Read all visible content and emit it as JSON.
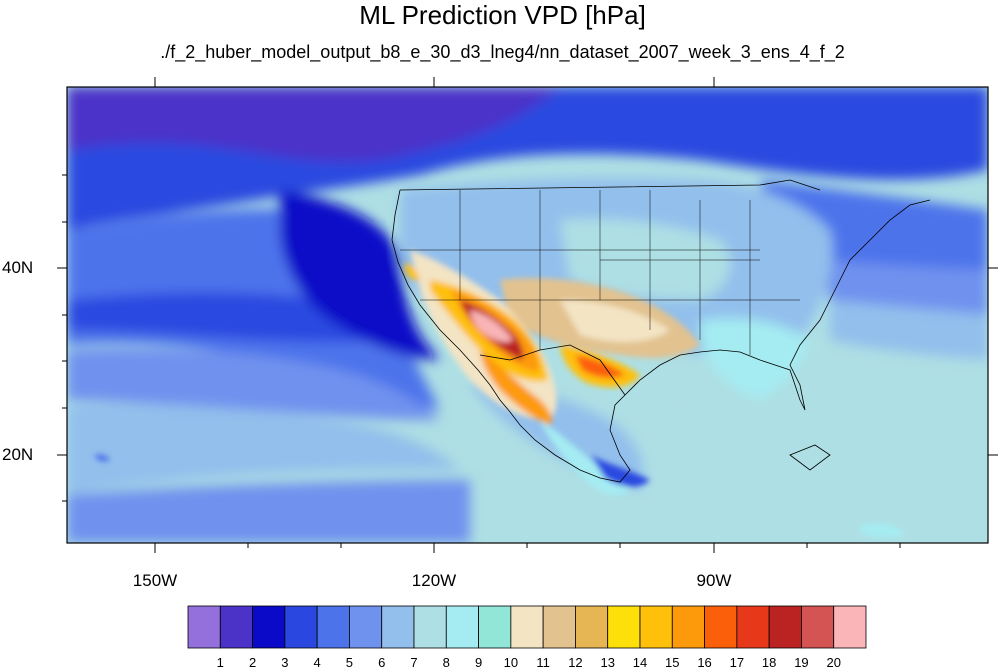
{
  "title": "ML Prediction VPD [hPa]",
  "subtitle": "./f_2_huber_model_output_b8_e_30_d3_lneg4/nn_dataset_2007_week_3_ens_4_f_2",
  "axes": {
    "lon_labels": [
      "150W",
      "120W",
      "90W"
    ],
    "lat_labels": [
      "40N",
      "20N"
    ]
  },
  "colorbar": {
    "labels": [
      "1",
      "2",
      "3",
      "4",
      "5",
      "6",
      "7",
      "8",
      "9",
      "10",
      "11",
      "12",
      "13",
      "14",
      "15",
      "16",
      "17",
      "18",
      "19",
      "20"
    ],
    "colors": [
      "#9370db",
      "#4b33c8",
      "#0a0ac8",
      "#2a48e0",
      "#4d73eb",
      "#6f92ee",
      "#92bfec",
      "#aedfe4",
      "#a5ecf2",
      "#91e6d8",
      "#f3e4c4",
      "#e2c28f",
      "#e6b554",
      "#fde00a",
      "#fec00a",
      "#fd9a0c",
      "#fc5f09",
      "#e8381a",
      "#bb2222",
      "#d45353",
      "#f9b5b7"
    ]
  },
  "map_colors": {
    "ocean_deep": "#0a0ac8",
    "ocean_mid": "#2a48e0",
    "ocean_light": "#4d73eb",
    "ocean_pale": "#6f92ee",
    "sky": "#92bfec",
    "pale": "#aedfe4",
    "cyan": "#a5ecf2",
    "desert_pale": "#f3e4c4",
    "desert": "#e2c28f",
    "hot1": "#fec00a",
    "hot2": "#fd9a0c",
    "hot3": "#fc5f09",
    "hot4": "#bb2222",
    "hot5": "#f9b5b7"
  }
}
